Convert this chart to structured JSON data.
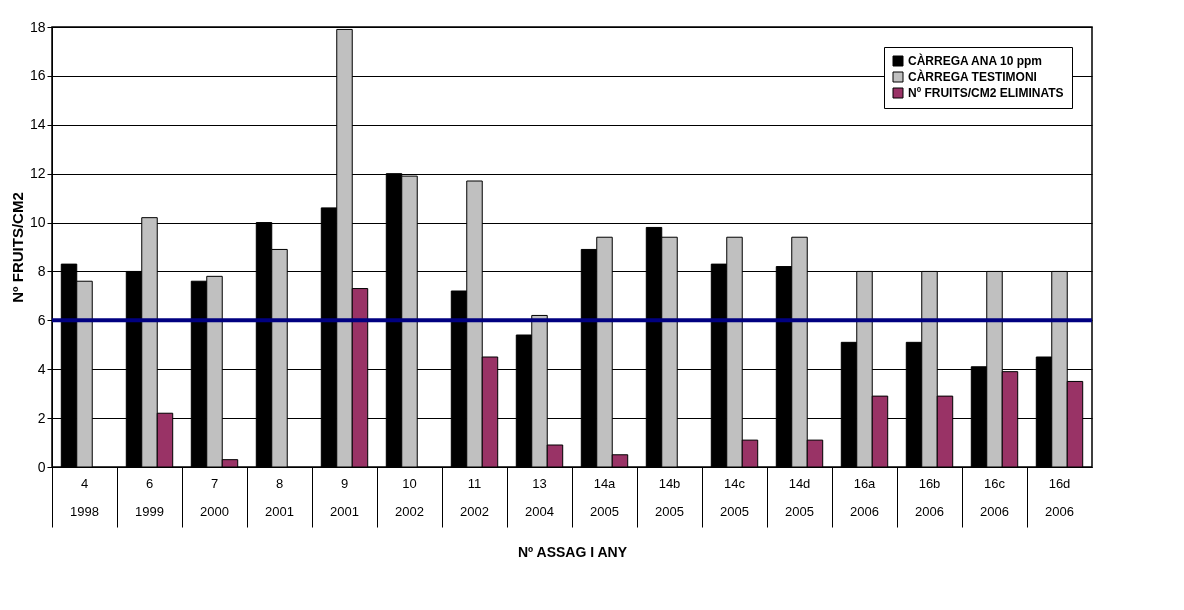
{
  "chart_data": {
    "type": "bar",
    "xlabel": "Nº ASSAG I ANY",
    "ylabel": "Nº FRUITS/CM2",
    "categories": [
      "4\n1998",
      "6\n1999",
      "7\n2000",
      "8\n2001",
      "9\n2001",
      "10\n2002",
      "11\n2002",
      "13\n2004",
      "14a\n2005",
      "14b\n2005",
      "14c\n2005",
      "14d\n2005",
      "16a\n2006",
      "16b\n2006",
      "16c\n2006",
      "16d\n2006"
    ],
    "series": [
      {
        "name": "CÀRREGA ANA 10 ppm",
        "color": "#000000",
        "values": [
          8.3,
          8.0,
          7.6,
          10.0,
          10.6,
          12.0,
          7.2,
          5.4,
          8.9,
          9.8,
          8.3,
          8.2,
          5.1,
          5.1,
          4.1,
          4.5
        ]
      },
      {
        "name": "CÀRREGA TESTIMONI",
        "color": "#c0c0c0",
        "values": [
          7.6,
          10.2,
          7.8,
          8.9,
          17.9,
          11.9,
          11.7,
          6.2,
          9.4,
          9.4,
          9.4,
          9.4,
          8.0,
          8.0,
          8.0,
          8.0
        ]
      },
      {
        "name": "Nº FRUITS/CM2 ELIMINATS",
        "color": "#993366",
        "values": [
          null,
          2.2,
          0.3,
          null,
          7.3,
          null,
          4.5,
          0.9,
          0.5,
          null,
          1.1,
          1.1,
          2.9,
          2.9,
          3.9,
          3.5
        ]
      }
    ],
    "ylim": [
      0,
      18
    ],
    "yticks": [
      0,
      2,
      4,
      6,
      8,
      10,
      12,
      14,
      16,
      18
    ],
    "grid": "y",
    "legend": "top right",
    "ref_lines": [
      {
        "axis": "y",
        "value": 6,
        "color": "#000080"
      }
    ]
  }
}
